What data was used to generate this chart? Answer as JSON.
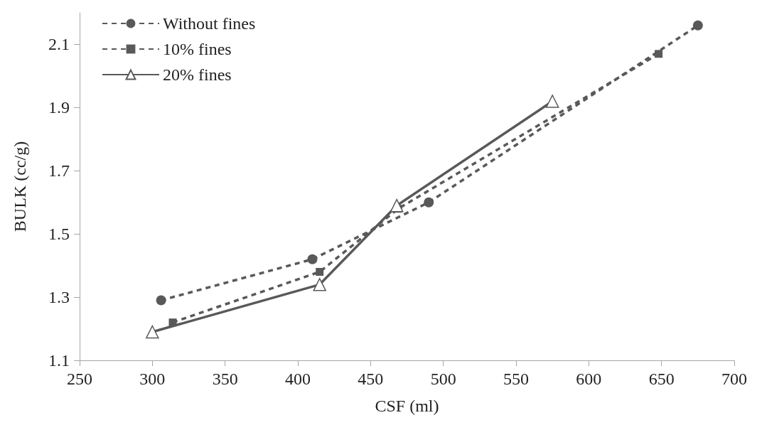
{
  "chart_data": {
    "type": "line",
    "xlabel": "CSF (ml)",
    "ylabel": "BULK (cc/g)",
    "xlim": [
      250,
      700
    ],
    "xticks": [
      250,
      300,
      350,
      400,
      450,
      500,
      550,
      600,
      650,
      700
    ],
    "ylim": [
      1.1,
      2.2
    ],
    "yticks": [
      1.1,
      1.3,
      1.5,
      1.7,
      1.9,
      2.1
    ],
    "grid": false,
    "legend": "top left",
    "series": [
      {
        "name": "Without fines",
        "color": "#595959",
        "marker": "circle",
        "line_style": "dashed",
        "x": [
          306,
          410,
          490,
          675
        ],
        "values": [
          1.29,
          1.42,
          1.6,
          2.16
        ]
      },
      {
        "name": "10% fines",
        "color": "#595959",
        "marker": "square",
        "line_style": "dashed",
        "x": [
          314,
          415,
          469,
          648
        ],
        "values": [
          1.22,
          1.38,
          1.58,
          2.07
        ]
      },
      {
        "name": "20% fines",
        "color": "#595959",
        "marker": "triangle",
        "line_style": "solid",
        "x": [
          300,
          415,
          468,
          575
        ],
        "values": [
          1.19,
          1.34,
          1.59,
          1.92
        ]
      }
    ]
  }
}
